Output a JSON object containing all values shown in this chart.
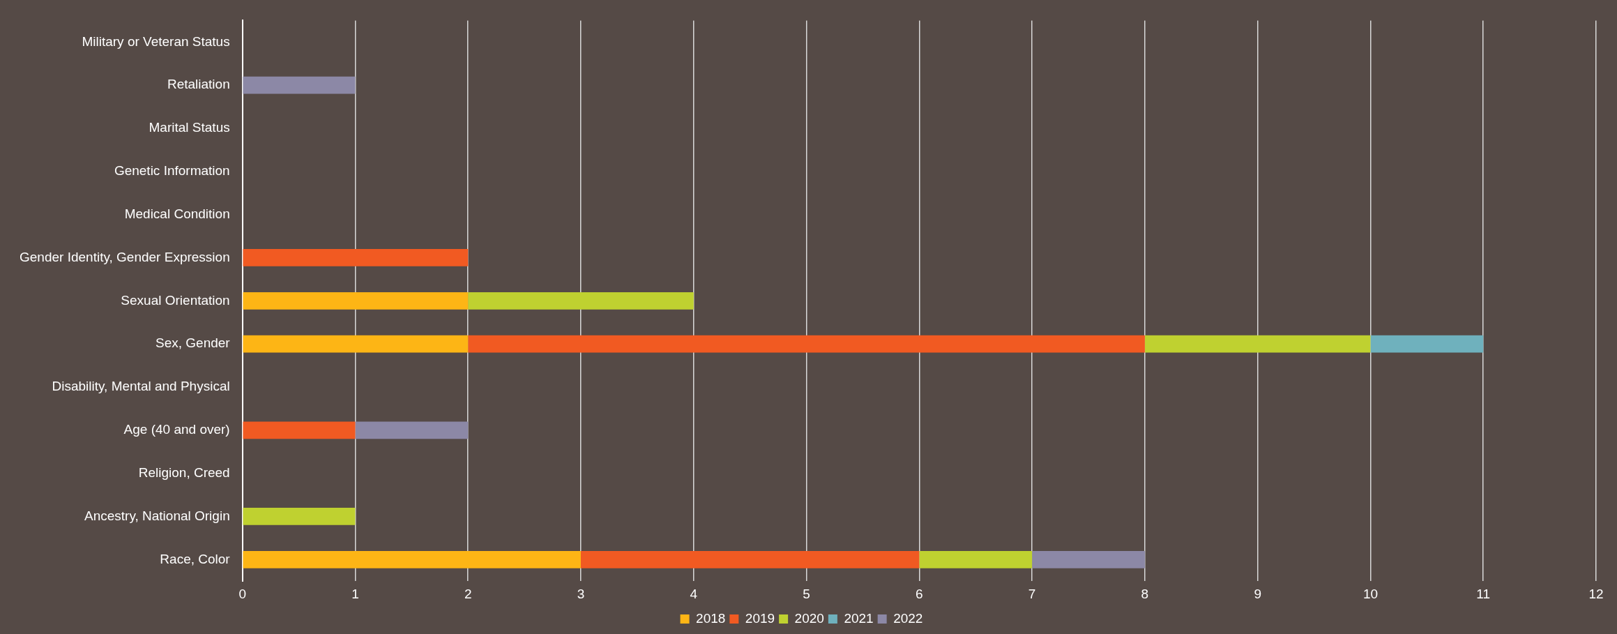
{
  "chart_data": {
    "type": "bar",
    "orientation": "horizontal",
    "stacked": true,
    "categories": [
      "Military or Veteran Status",
      "Retaliation",
      "Marital Status",
      "Genetic Information",
      "Medical Condition",
      "Gender Identity, Gender Expression",
      "Sexual Orientation",
      "Sex, Gender",
      "Disability, Mental and Physical",
      "Age (40 and over)",
      "Religion, Creed",
      "Ancestry, National Origin",
      "Race, Color"
    ],
    "series": [
      {
        "name": "2018",
        "color": "#fdb515",
        "values": [
          0,
          0,
          0,
          0,
          0,
          0,
          2,
          2,
          0,
          0,
          0,
          0,
          3
        ]
      },
      {
        "name": "2019",
        "color": "#f15a22",
        "values": [
          0,
          0,
          0,
          0,
          0,
          2,
          0,
          6,
          0,
          1,
          0,
          0,
          3
        ]
      },
      {
        "name": "2020",
        "color": "#bfd130",
        "values": [
          0,
          0,
          0,
          0,
          0,
          0,
          2,
          2,
          0,
          0,
          0,
          1,
          1
        ]
      },
      {
        "name": "2021",
        "color": "#6fb1bd",
        "values": [
          0,
          0,
          0,
          0,
          0,
          0,
          0,
          1,
          0,
          0,
          0,
          0,
          0
        ]
      },
      {
        "name": "2022",
        "color": "#8c88a6",
        "values": [
          0,
          1,
          0,
          0,
          0,
          0,
          0,
          0,
          0,
          1,
          0,
          0,
          1
        ]
      }
    ],
    "xlim": [
      0,
      12
    ],
    "xticks": [
      0,
      1,
      2,
      3,
      4,
      5,
      6,
      7,
      8,
      9,
      10,
      11,
      12
    ],
    "grid": "x",
    "legend": "bottom"
  }
}
